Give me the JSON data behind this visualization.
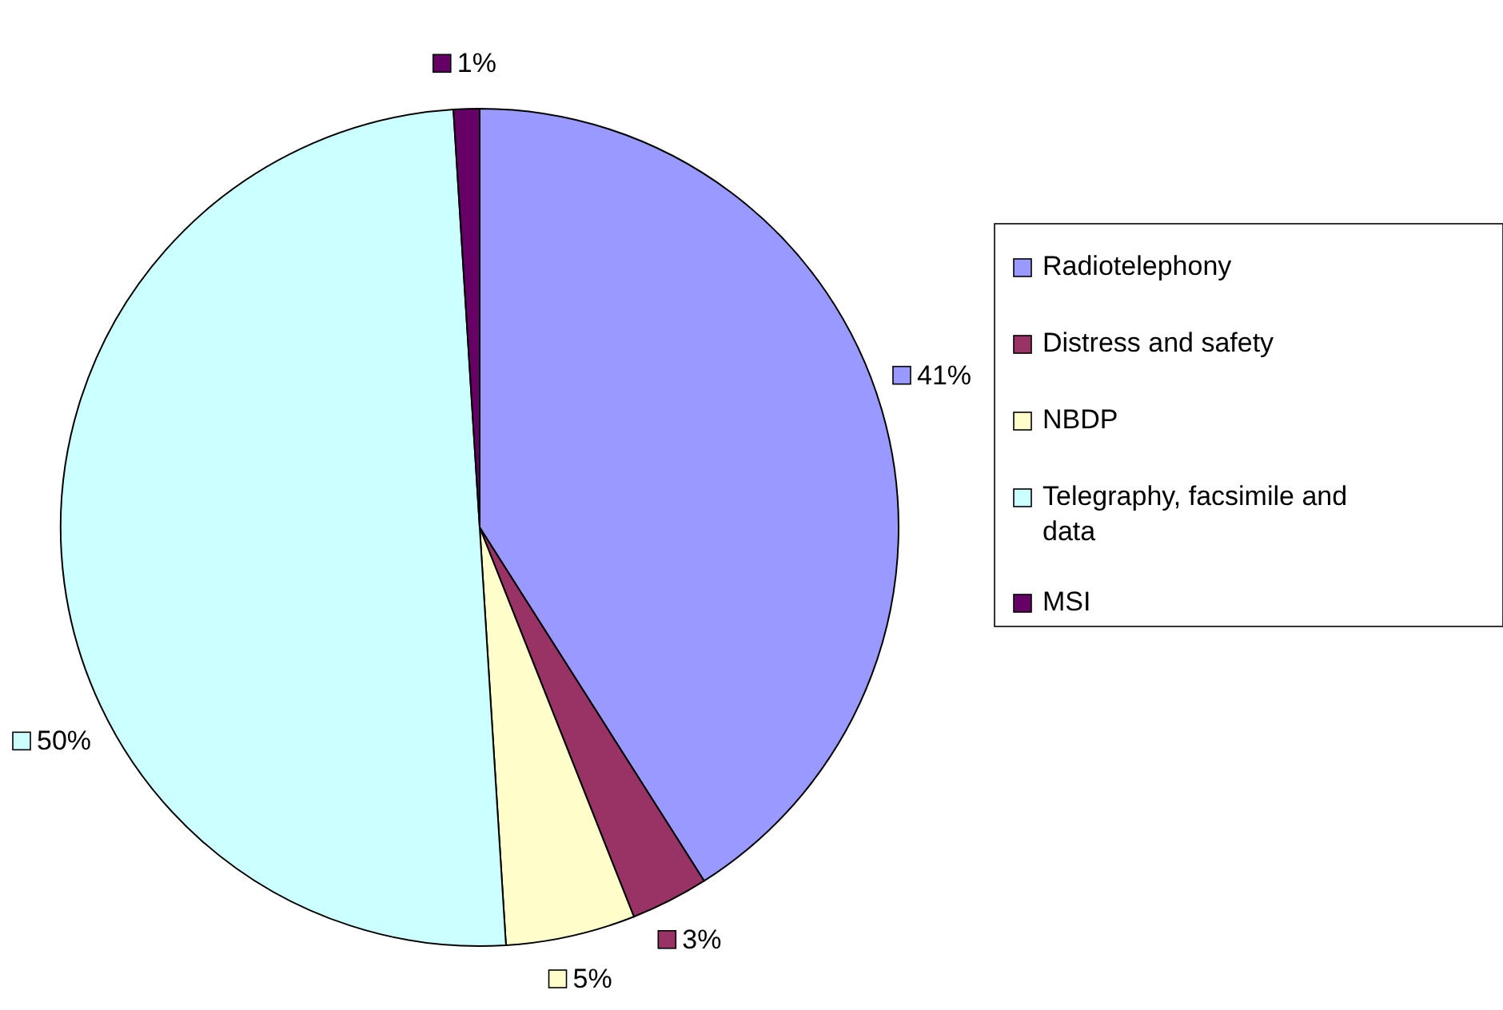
{
  "chart_data": {
    "type": "pie",
    "categories": [
      "Radiotelephony",
      "Distress and safety",
      "NBDP",
      "Telegraphy, facsimile and data",
      "MSI"
    ],
    "values": [
      41,
      3,
      5,
      50,
      1
    ],
    "value_labels": [
      "41%",
      "3%",
      "5%",
      "50%",
      "1%"
    ],
    "colors": [
      "#9999ff",
      "#993366",
      "#ffffcc",
      "#ccffff",
      "#660066"
    ],
    "legend": "right"
  }
}
